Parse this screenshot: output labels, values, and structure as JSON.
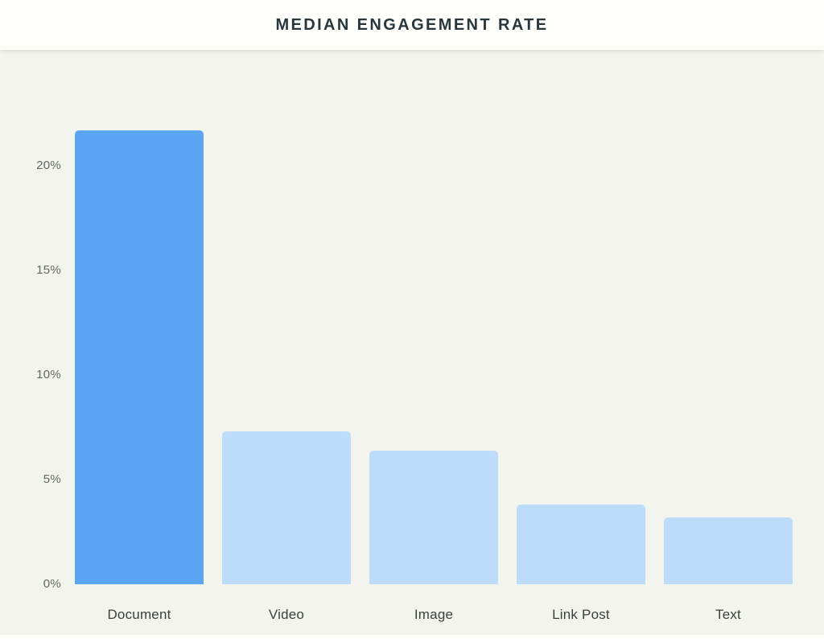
{
  "header": {
    "title": "MEDIAN ENGAGEMENT RATE"
  },
  "colors": {
    "page_background": "#F4F4EE",
    "header_background": "#FFFFFB",
    "title_text": "#28373C",
    "tick_text": "#5E6865",
    "category_text": "#39413E"
  },
  "chart_data": {
    "type": "bar",
    "title": "MEDIAN ENGAGEMENT RATE",
    "categories": [
      "Document",
      "Video",
      "Image",
      "Link Post",
      "Text"
    ],
    "values": [
      21.7,
      7.3,
      6.4,
      3.8,
      3.2
    ],
    "bar_colors": [
      "#5AA6F4",
      "#BDDCFA",
      "#BDDCFA",
      "#BDDCFA",
      "#BDDCFA"
    ],
    "highlight_category": "Document",
    "xlabel": "",
    "ylabel": "",
    "y_ticks": [
      {
        "value": 0,
        "label": "0%"
      },
      {
        "value": 5,
        "label": "5%"
      },
      {
        "value": 10,
        "label": "10%"
      },
      {
        "value": 15,
        "label": "15%"
      },
      {
        "value": 20,
        "label": "20%"
      }
    ],
    "ylim": [
      0,
      22.5
    ],
    "grid": false,
    "legend_position": "none"
  }
}
